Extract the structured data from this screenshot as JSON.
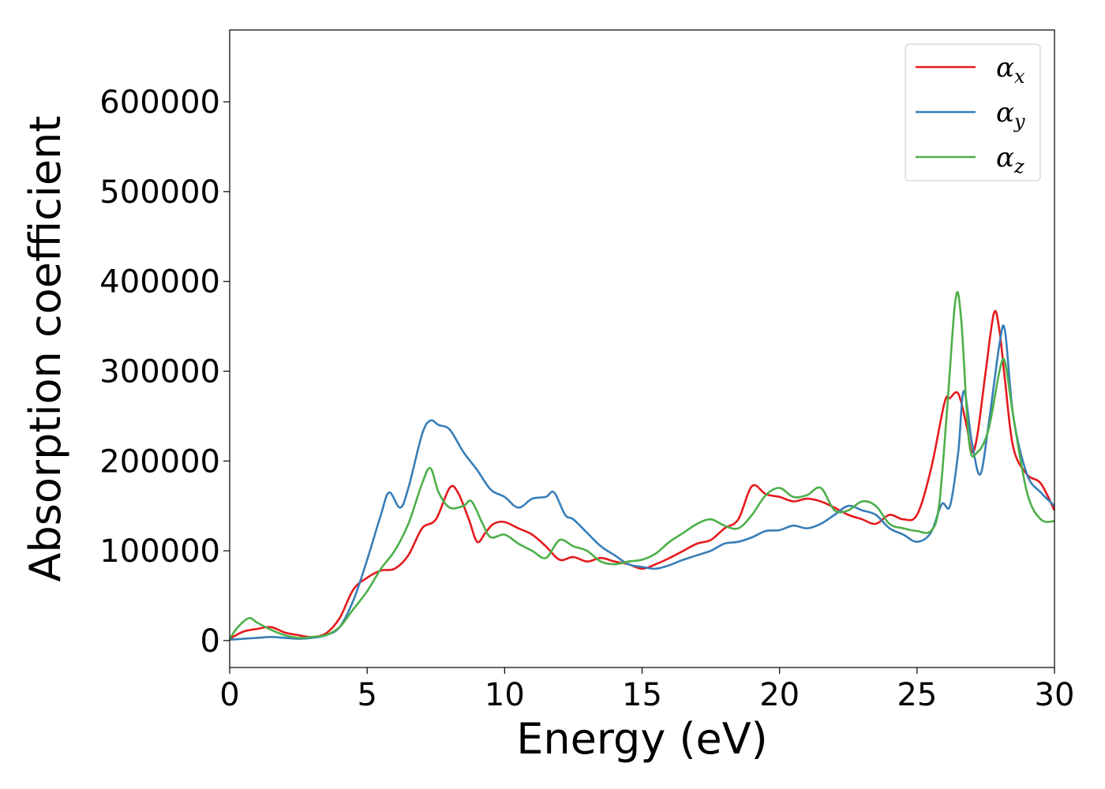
{
  "chart_data": {
    "type": "line",
    "xlabel": "Energy (eV)",
    "ylabel": "Absorption coefficient",
    "xlim": [
      0,
      30
    ],
    "ylim": [
      -30000,
      680000
    ],
    "xticks": [
      0,
      5,
      10,
      15,
      20,
      25,
      30
    ],
    "yticks": [
      0,
      100000,
      200000,
      300000,
      400000,
      500000,
      600000
    ],
    "xtick_labels": [
      "0",
      "5",
      "10",
      "15",
      "20",
      "25",
      "30"
    ],
    "ytick_labels": [
      "0",
      "100000",
      "200000",
      "300000",
      "400000",
      "500000",
      "600000"
    ],
    "grid": false,
    "legend_position": "top-right",
    "series": [
      {
        "name": "α",
        "subscript": "x",
        "color": "#e41a1c",
        "x": [
          0,
          0.5,
          1,
          1.5,
          2,
          2.5,
          3,
          3.5,
          4,
          4.5,
          5,
          5.5,
          6,
          6.5,
          7,
          7.5,
          8,
          8.3,
          8.7,
          9,
          9.3,
          9.6,
          10,
          10.5,
          11,
          11.5,
          12,
          12.5,
          13,
          13.5,
          14,
          14.5,
          15,
          15.5,
          16,
          16.5,
          17,
          17.5,
          18,
          18.5,
          19,
          19.5,
          20,
          20.5,
          21,
          21.5,
          22,
          22.5,
          23,
          23.5,
          24,
          24.5,
          25,
          25.5,
          26,
          26.2,
          26.5,
          26.8,
          27,
          27.2,
          27.5,
          27.8,
          28,
          28.2,
          28.5,
          29,
          29.5,
          30
        ],
        "y": [
          2000,
          10000,
          13000,
          15000,
          9000,
          6000,
          4000,
          8000,
          25000,
          57000,
          70000,
          78000,
          80000,
          95000,
          125000,
          135000,
          170000,
          165000,
          135000,
          110000,
          120000,
          130000,
          132000,
          125000,
          118000,
          105000,
          90000,
          93000,
          88000,
          92000,
          88000,
          85000,
          80000,
          85000,
          92000,
          100000,
          108000,
          112000,
          125000,
          135000,
          172000,
          163000,
          160000,
          155000,
          158000,
          155000,
          148000,
          140000,
          135000,
          130000,
          140000,
          135000,
          140000,
          190000,
          265000,
          270000,
          275000,
          240000,
          210000,
          230000,
          300000,
          365000,
          345000,
          290000,
          215000,
          185000,
          175000,
          145000
        ]
      },
      {
        "name": "α",
        "subscript": "y",
        "color": "#377eb8",
        "x": [
          0,
          0.5,
          1,
          1.5,
          2,
          2.5,
          3,
          3.5,
          4,
          4.5,
          5,
          5.5,
          5.8,
          6.2,
          6.5,
          7,
          7.3,
          7.6,
          8,
          8.5,
          9,
          9.5,
          10,
          10.5,
          11,
          11.5,
          11.8,
          12.2,
          12.5,
          13,
          13.5,
          14,
          14.5,
          15,
          15.5,
          16,
          16.5,
          17,
          17.5,
          18,
          18.5,
          19,
          19.5,
          20,
          20.5,
          21,
          21.5,
          22,
          22.5,
          23,
          23.5,
          24,
          24.5,
          25,
          25.5,
          25.9,
          26.2,
          26.5,
          26.7,
          27,
          27.3,
          27.6,
          28,
          28.2,
          28.5,
          29,
          29.5,
          30
        ],
        "y": [
          1000,
          2000,
          3000,
          4000,
          3000,
          2000,
          3000,
          6000,
          15000,
          45000,
          90000,
          140000,
          165000,
          148000,
          170000,
          230000,
          245000,
          240000,
          235000,
          210000,
          190000,
          168000,
          160000,
          148000,
          158000,
          160000,
          165000,
          140000,
          135000,
          120000,
          105000,
          95000,
          85000,
          82000,
          80000,
          84000,
          90000,
          95000,
          100000,
          108000,
          110000,
          115000,
          122000,
          123000,
          128000,
          125000,
          130000,
          140000,
          150000,
          145000,
          140000,
          125000,
          118000,
          110000,
          120000,
          152000,
          150000,
          210000,
          278000,
          220000,
          185000,
          240000,
          330000,
          345000,
          250000,
          185000,
          165000,
          150000
        ]
      },
      {
        "name": "α",
        "subscript": "z",
        "color": "#4daf4a",
        "x": [
          0,
          0.3,
          0.7,
          1,
          1.5,
          2,
          2.5,
          3,
          3.5,
          4,
          4.5,
          5,
          5.5,
          6,
          6.5,
          7,
          7.3,
          7.6,
          8,
          8.5,
          8.8,
          9.2,
          9.5,
          10,
          10.5,
          11,
          11.5,
          12,
          12.5,
          13,
          13.5,
          14,
          14.5,
          15,
          15.5,
          16,
          16.5,
          17,
          17.5,
          18,
          18.5,
          19,
          19.5,
          20,
          20.5,
          21,
          21.5,
          22,
          22.5,
          23,
          23.5,
          24,
          24.5,
          25,
          25.5,
          25.8,
          26.1,
          26.4,
          26.6,
          26.9,
          27.2,
          27.6,
          28,
          28.2,
          28.5,
          29,
          29.5,
          30
        ],
        "y": [
          2000,
          15000,
          25000,
          20000,
          12000,
          6000,
          3000,
          4000,
          6000,
          15000,
          35000,
          55000,
          80000,
          100000,
          130000,
          175000,
          192000,
          165000,
          148000,
          150000,
          155000,
          130000,
          115000,
          118000,
          108000,
          100000,
          92000,
          112000,
          105000,
          100000,
          88000,
          85000,
          88000,
          90000,
          97000,
          110000,
          120000,
          130000,
          135000,
          128000,
          125000,
          140000,
          162000,
          170000,
          160000,
          162000,
          170000,
          145000,
          145000,
          155000,
          150000,
          130000,
          125000,
          122000,
          122000,
          150000,
          260000,
          380000,
          360000,
          220000,
          210000,
          235000,
          300000,
          310000,
          250000,
          165000,
          135000,
          133000
        ]
      }
    ]
  }
}
